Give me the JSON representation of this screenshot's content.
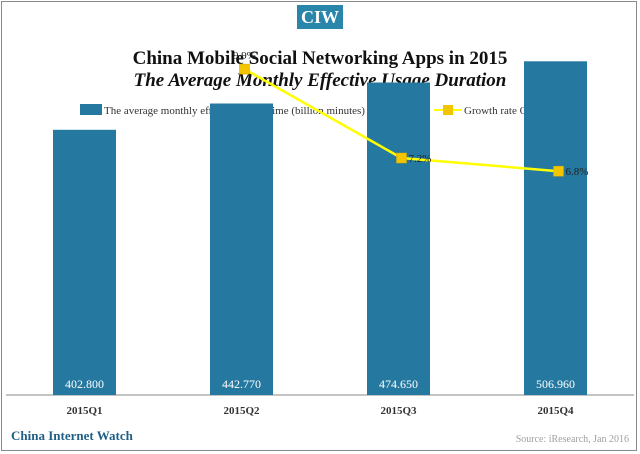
{
  "badge": "CIW",
  "footer": {
    "brand": "China Internet Watch",
    "source": "Source: iResearch, Jan 2016"
  },
  "colors": {
    "bar": "#2578a0",
    "line": "#ffff00",
    "marker": "#f2c500",
    "accent": "#2a85aa"
  },
  "chart_data": {
    "type": "bar",
    "title": "China Mobile Social Networking Apps in 2015",
    "subtitle": "The Average Monthly Effective Usage Duration",
    "categories": [
      "2015Q1",
      "2015Q2",
      "2015Q3",
      "2015Q4"
    ],
    "series": [
      {
        "name": "The average monthly effective usage time (billion minutes)",
        "type": "bar",
        "values": [
          402.8,
          442.77,
          474.65,
          506.96
        ],
        "labels": [
          "402.800",
          "442.770",
          "474.650",
          "506.960"
        ]
      },
      {
        "name": "Growth rate QoQ (%)",
        "type": "line",
        "values": [
          null,
          9.9,
          7.2,
          6.8
        ],
        "labels": [
          "",
          "9.9%",
          "7.2%",
          "6.8%"
        ]
      }
    ],
    "ylim": [
      0,
      600
    ],
    "y2lim": [
      0,
      12
    ],
    "grid": false,
    "legend": "top"
  }
}
